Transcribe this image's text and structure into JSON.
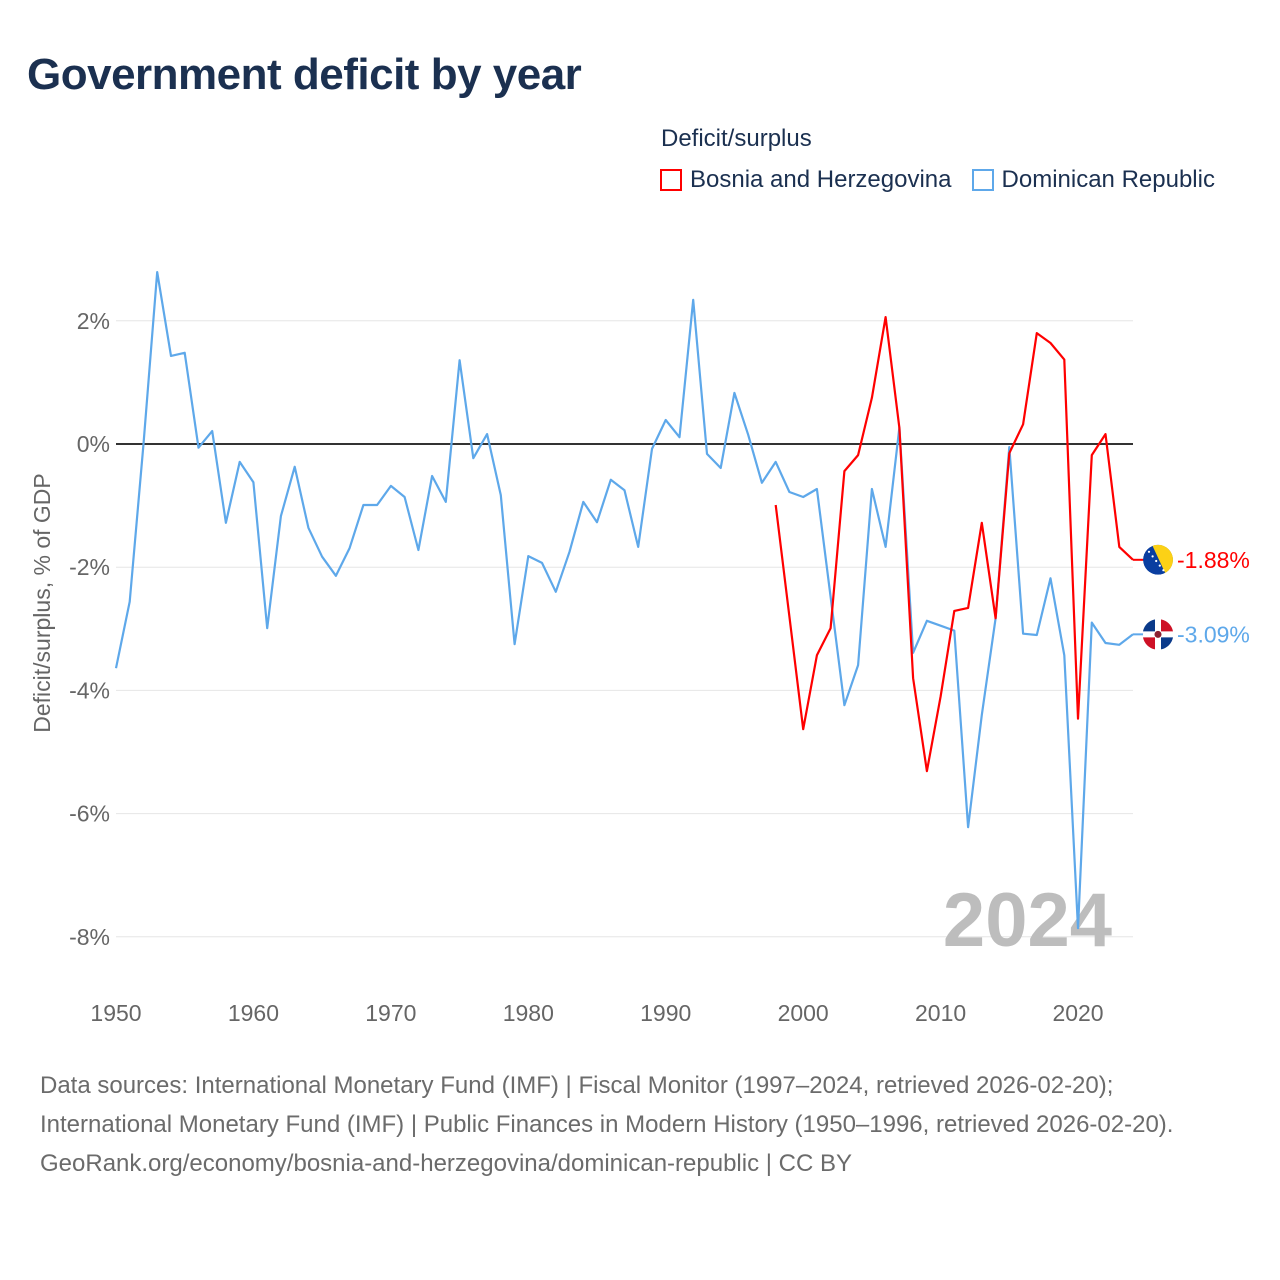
{
  "title": "Government deficit by year",
  "legend": {
    "title": "Deficit/surplus",
    "items": [
      {
        "label": "Bosnia and Herzegovina",
        "color": "#ff0000"
      },
      {
        "label": "Dominican Republic",
        "color": "#5ea8ea"
      }
    ]
  },
  "footer": {
    "sources": "Data sources: International Monetary Fund (IMF) | Fiscal Monitor (1997–2024, retrieved 2026-02-20); International Monetary Fund (IMF) | Public Finances in Modern History (1950–1996, retrieved 2026-02-20).",
    "link": "GeoRank.org/economy/bosnia-and-herzegovina/dominican-republic | CC BY"
  },
  "chart_data": {
    "type": "line",
    "title": "Government deficit by year",
    "ylabel": "Deficit/surplus, % of GDP",
    "xlabel": "",
    "xlim": [
      1950,
      2024
    ],
    "ylim": [
      -8.9,
      3
    ],
    "xticks": [
      1950,
      1960,
      1970,
      1980,
      1990,
      2000,
      2010,
      2020
    ],
    "yticks": [
      {
        "v": 2,
        "label": "2%"
      },
      {
        "v": 0,
        "label": "0%"
      },
      {
        "v": -2,
        "label": "-2%"
      },
      {
        "v": -4,
        "label": "-4%"
      },
      {
        "v": -6,
        "label": "-6%"
      },
      {
        "v": -8,
        "label": "-8%"
      }
    ],
    "grid": true,
    "year_watermark": "2024",
    "series": [
      {
        "name": "Bosnia and Herzegovina",
        "color": "#ff0000",
        "end_label": "-1.88%",
        "start_year": 1998,
        "values": [
          -0.99,
          -2.8,
          -4.63,
          -3.43,
          -2.99,
          -0.44,
          -0.18,
          0.75,
          2.06,
          0.26,
          -3.8,
          -5.31,
          -4.1,
          -2.71,
          -2.66,
          -1.28,
          -2.83,
          -0.15,
          0.32,
          1.8,
          1.64,
          1.37,
          -4.46,
          -0.18,
          0.16,
          -1.67,
          -1.88
        ]
      },
      {
        "name": "Dominican Republic",
        "color": "#5ea8ea",
        "end_label": "-3.09%",
        "start_year": 1950,
        "values": [
          -3.64,
          -2.56,
          0.0,
          2.79,
          1.43,
          1.48,
          -0.06,
          0.21,
          -1.28,
          -0.29,
          -0.62,
          -2.99,
          -1.17,
          -0.37,
          -1.36,
          -1.83,
          -2.14,
          -1.69,
          -0.99,
          -0.99,
          -0.68,
          -0.86,
          -1.72,
          -0.52,
          -0.94,
          1.36,
          -0.23,
          0.16,
          -0.83,
          -3.25,
          -1.82,
          -1.93,
          -2.4,
          -1.75,
          -0.94,
          -1.27,
          -0.58,
          -0.75,
          -1.67,
          -0.08,
          0.39,
          0.11,
          2.34,
          -0.16,
          -0.39,
          0.83,
          0.15,
          -0.63,
          -0.29,
          -0.78,
          -0.86,
          -0.73,
          -2.48,
          -4.24,
          -3.59,
          -0.73,
          -1.67,
          0.27,
          -3.39,
          -2.87,
          -2.95,
          -3.03,
          -6.22,
          -4.4,
          -2.83,
          -0.05,
          -3.08,
          -3.1,
          -2.18,
          -3.43,
          -7.86,
          -2.9,
          -3.23,
          -3.26,
          -3.09
        ]
      }
    ]
  }
}
